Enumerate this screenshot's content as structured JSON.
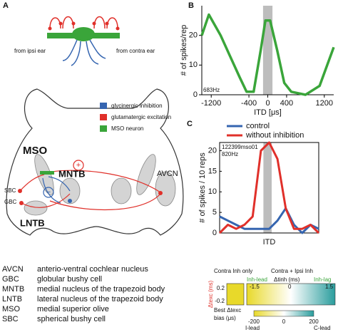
{
  "panel_labels": [
    "A",
    "B",
    "C"
  ],
  "diagram": {
    "ipsi": "from ipsi ear",
    "contra": "from contra ear",
    "legend": [
      "glycinergic inhibition",
      "glutamatergic excitation",
      "MSO neuron"
    ],
    "mso": "MSO",
    "mntb": "MNTB",
    "lntb": "LNTB",
    "avcn": "AVCN",
    "sbc": "SBC",
    "gbc": "GBC",
    "plus": "+",
    "minus": "−"
  },
  "abbreviations": [
    [
      "AVCN",
      "anterio-ventral cochlear nucleus"
    ],
    [
      "GBC",
      "globular bushy cell"
    ],
    [
      "MNTB",
      "medial nucleus of the trapezoid body"
    ],
    [
      "LNTB",
      "lateral nucleus of the trapezoid body"
    ],
    [
      "MSO",
      "medial superior olive"
    ],
    [
      "SBC",
      "spherical bushy cell"
    ]
  ],
  "chart_data": [
    {
      "type": "line",
      "xlabel": "ITD [μs]",
      "ylabel": "# of spikes/rep",
      "annotation": "683Hz",
      "x": [
        -1400,
        -1250,
        -1000,
        -800,
        -600,
        -450,
        -300,
        -150,
        -50,
        50,
        200,
        350,
        500,
        800,
        1100,
        1400
      ],
      "values": [
        20,
        27,
        20,
        13,
        6,
        1,
        1,
        15,
        25,
        25,
        15,
        4,
        1,
        0,
        3,
        16
      ],
      "color": "#3aa53a",
      "band": [
        -100,
        100
      ],
      "xlim": [
        -1400,
        1400
      ],
      "ylim": [
        0,
        30
      ],
      "xticks": [
        -1200,
        -400,
        0,
        400,
        1200
      ],
      "yticks": [
        0,
        10,
        20
      ]
    },
    {
      "type": "line",
      "xlabel": "ITD",
      "ylabel": "# of spikes / 10 reps",
      "annotations": [
        "122399mso01",
        "820Hz"
      ],
      "categories": [
        null,
        null,
        null,
        null,
        null,
        null,
        null,
        null,
        null,
        null,
        null,
        null,
        null
      ],
      "series": [
        {
          "name": "control",
          "color": "#3565b0",
          "values": [
            4,
            3,
            2,
            1,
            1,
            1,
            1,
            3,
            6,
            2,
            0,
            2,
            1
          ]
        },
        {
          "name": "without inhibition",
          "color": "#e0302a",
          "values": [
            0,
            2,
            1,
            2,
            4,
            20,
            22,
            18,
            6,
            1,
            1,
            2,
            0
          ]
        }
      ],
      "band": [
        5.3,
        6.3
      ],
      "ylim": [
        0,
        22
      ],
      "yticks": [
        0,
        5,
        10,
        15,
        20
      ]
    }
  ],
  "inset": {
    "left_title": "Contra Inh only",
    "right_title": "Contra + Ipsi Inh",
    "inh_lead": "Inh-lead",
    "inh_lag": "Inh-lag",
    "top_axis": "Δtinh (ms)",
    "top_ticks": [
      "-1.5",
      "0",
      "1.5"
    ],
    "y_axis": "Δtexc (ms)",
    "y_ticks": [
      "0.2",
      "-0.2"
    ],
    "cbar_title": [
      "Best Δtexc",
      "bias (μs)"
    ],
    "cbar_ticks": [
      "-200",
      "0",
      "200"
    ],
    "cbar_ends": [
      "I-lead",
      "C-lead"
    ]
  }
}
